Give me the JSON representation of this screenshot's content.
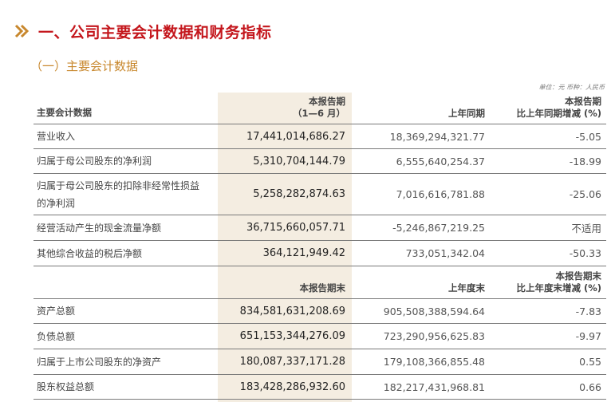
{
  "heading": "一、公司主要会计数据和财务指标",
  "subheading": "（一）主要会计数据",
  "unit_note": "单位：元  币种：人民币",
  "table1": {
    "col1": "主要会计数据",
    "col2_line1": "本报告期",
    "col2_line2": "（1—6 月）",
    "col3": "上年同期",
    "col4_line1": "本报告期",
    "col4_line2": "比上年同期增减 (%)",
    "rows": [
      {
        "label": "营业收入",
        "current": "17,441,014,686.27",
        "prior": "18,369,294,321.77",
        "change": "-5.05"
      },
      {
        "label": "归属于母公司股东的净利润",
        "current": "5,310,704,144.79",
        "prior": "6,555,640,254.37",
        "change": "-18.99"
      },
      {
        "label_line1": "归属于母公司股东的扣除非经常性损益",
        "label_line2": "的净利润",
        "current": "5,258,282,874.63",
        "prior": "7,016,616,781.88",
        "change": "-25.06"
      },
      {
        "label": "经营活动产生的现金流量净额",
        "current": "36,715,660,057.71",
        "prior": "-5,246,867,219.25",
        "change": "不适用"
      },
      {
        "label": "其他综合收益的税后净额",
        "current": "364,121,949.42",
        "prior": "733,051,342.04",
        "change": "-50.33"
      }
    ]
  },
  "table2": {
    "col2": "本报告期末",
    "col3": "上年度末",
    "col4_line1": "本报告期末",
    "col4_line2": "比上年度末增减 (%)",
    "rows": [
      {
        "label": "资产总额",
        "current": "834,581,631,208.69",
        "prior": "905,508,388,594.64",
        "change": "-7.83"
      },
      {
        "label": "负债总额",
        "current": "651,153,344,276.09",
        "prior": "723,290,956,625.83",
        "change": "-9.97"
      },
      {
        "label": "归属于上市公司股东的净资产",
        "current": "180,087,337,171.28",
        "prior": "179,108,366,855.48",
        "change": "0.55"
      },
      {
        "label": "股东权益总额",
        "current": "183,428,286,932.60",
        "prior": "182,217,431,968.81",
        "change": "0.66"
      }
    ]
  }
}
